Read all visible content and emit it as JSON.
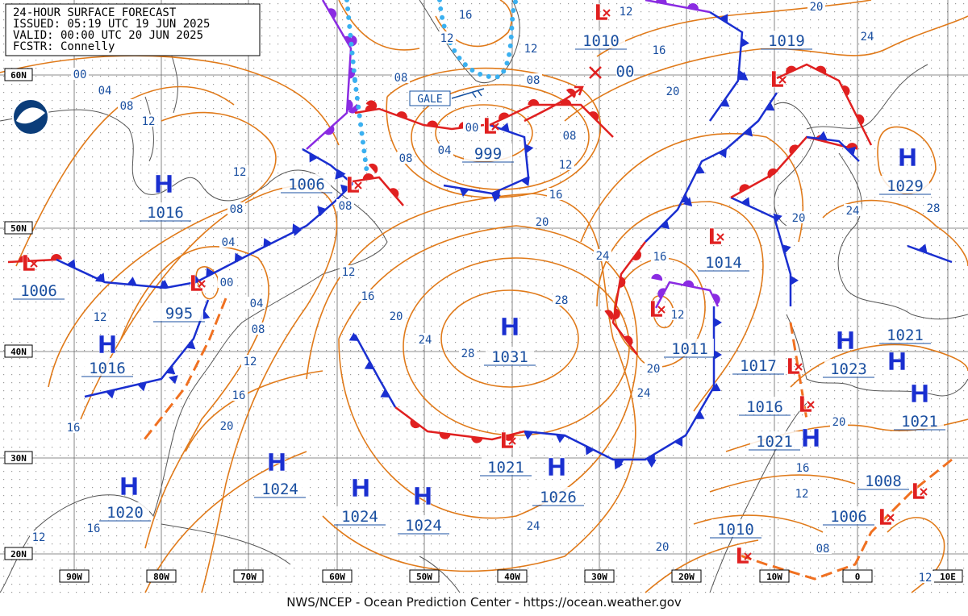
{
  "header": {
    "title": "24-HOUR SURFACE FORECAST",
    "issued": "ISSUED: 05:19 UTC 19 JUN 2025",
    "valid": "VALID:  00:00 UTC 20 JUN 2025",
    "forecaster": "FCSTR:  Connelly"
  },
  "latitude_labels": [
    "60N",
    "50N",
    "40N",
    "30N",
    "20N"
  ],
  "longitude_labels": [
    "90W",
    "80W",
    "70W",
    "60W",
    "50W",
    "40W",
    "30W",
    "20W",
    "10W",
    "0",
    "10E"
  ],
  "centers": [
    {
      "symbol": "H",
      "pressure": "1016"
    },
    {
      "symbol": "L",
      "pressure": "1006"
    },
    {
      "symbol": "L",
      "pressure": "999"
    },
    {
      "symbol": "L",
      "pressure": "1010"
    },
    {
      "pressure": "1019"
    },
    {
      "symbol": "L"
    },
    {
      "symbol": "L",
      "pressure": "1006"
    },
    {
      "symbol": "L",
      "pressure": "995"
    },
    {
      "symbol": "H",
      "pressure": "1016"
    },
    {
      "symbol": "H",
      "pressure": "1031"
    },
    {
      "symbol": "L",
      "pressure": "1011"
    },
    {
      "symbol": "L",
      "pressure": "1014"
    },
    {
      "symbol": "H",
      "pressure": "1029"
    },
    {
      "symbol": "H",
      "pressure": "1023"
    },
    {
      "symbol": "L",
      "pressure": "1017"
    },
    {
      "symbol": "H",
      "pressure": "1021"
    },
    {
      "symbol": "H",
      "pressure": "1021"
    },
    {
      "symbol": "L",
      "pressure": "1016"
    },
    {
      "symbol": "H",
      "pressure": "1021"
    },
    {
      "symbol": "L",
      "pressure": "1021"
    },
    {
      "symbol": "H",
      "pressure": "1026"
    },
    {
      "symbol": "H",
      "pressure": "1024"
    },
    {
      "symbol": "H",
      "pressure": "1020"
    },
    {
      "symbol": "H",
      "pressure": "1024"
    },
    {
      "symbol": "H",
      "pressure": "1024"
    },
    {
      "symbol": "L",
      "pressure": "1008"
    },
    {
      "symbol": "L",
      "pressure": "1006"
    },
    {
      "symbol": "L",
      "pressure": "1010"
    }
  ],
  "isobar_labels": [
    "00",
    "04",
    "08",
    "12",
    "12",
    "08",
    "04",
    "00",
    "04",
    "08",
    "12",
    "16",
    "20",
    "16",
    "12",
    "16",
    "12",
    "08",
    "08",
    "04",
    "08",
    "12",
    "16",
    "20",
    "24",
    "28",
    "28",
    "24",
    "20",
    "16",
    "12",
    "08",
    "08",
    "12",
    "12",
    "16",
    "16",
    "20",
    "24",
    "20",
    "16",
    "20",
    "24",
    "20",
    "24",
    "28",
    "20",
    "16",
    "12",
    "08",
    "20",
    "24",
    "12",
    "12",
    "00",
    "00",
    "12"
  ],
  "gale_label": "GALE",
  "footer": "NWS/NCEP - Ocean Prediction Center - https://ocean.weather.gov"
}
